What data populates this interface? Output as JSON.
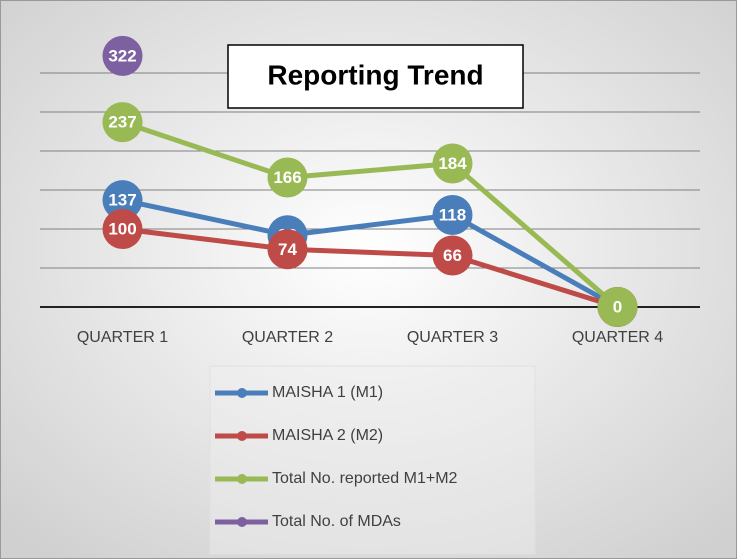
{
  "chart_data": {
    "type": "line",
    "title": "Reporting Trend",
    "categories": [
      "QUARTER 1",
      "QUARTER 2",
      "QUARTER 3",
      "QUARTER 4"
    ],
    "series": [
      {
        "name": "MAISHA 1 (M1)",
        "color": "#4a7ebb",
        "values": [
          137,
          92,
          118,
          0
        ]
      },
      {
        "name": "MAISHA 2 (M2)",
        "color": "#be4b48",
        "values": [
          100,
          74,
          66,
          0
        ]
      },
      {
        "name": "Total No. reported M1+M2",
        "color": "#98b954",
        "values": [
          237,
          166,
          184,
          0
        ]
      },
      {
        "name": "Total No. of MDAs",
        "color": "#7d60a0",
        "values": [
          322,
          null,
          null,
          null
        ]
      }
    ],
    "ylim": [
      0,
      350
    ],
    "yticks": [
      0,
      50,
      100,
      150,
      200,
      250,
      300
    ],
    "grid": true
  }
}
